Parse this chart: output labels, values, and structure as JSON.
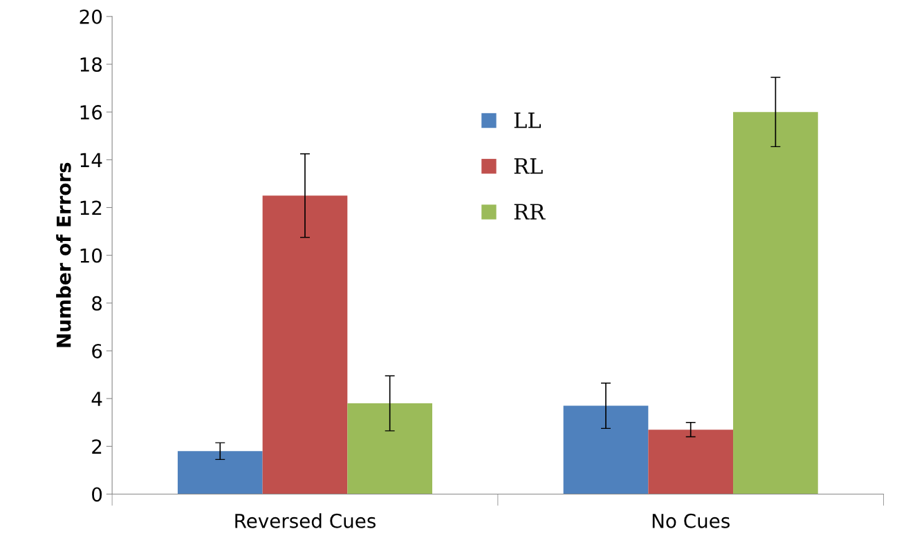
{
  "chart_data": {
    "type": "bar",
    "ylabel": "Number of Errors",
    "categories": [
      "Reversed Cues",
      "No Cues"
    ],
    "series": [
      {
        "name": "LL",
        "color": "#4f81bd",
        "values": [
          1.8,
          3.7
        ],
        "errors": [
          0.35,
          0.95
        ]
      },
      {
        "name": "RL",
        "color": "#c0504d",
        "values": [
          12.5,
          2.7
        ],
        "errors": [
          1.75,
          0.3
        ]
      },
      {
        "name": "RR",
        "color": "#9bbb59",
        "values": [
          3.8,
          16.0
        ],
        "errors": [
          1.15,
          1.45
        ]
      }
    ],
    "ylim": [
      0,
      20
    ],
    "yticks": [
      0,
      2,
      4,
      6,
      8,
      10,
      12,
      14,
      16,
      18,
      20
    ],
    "grid": false,
    "legend": "top"
  }
}
